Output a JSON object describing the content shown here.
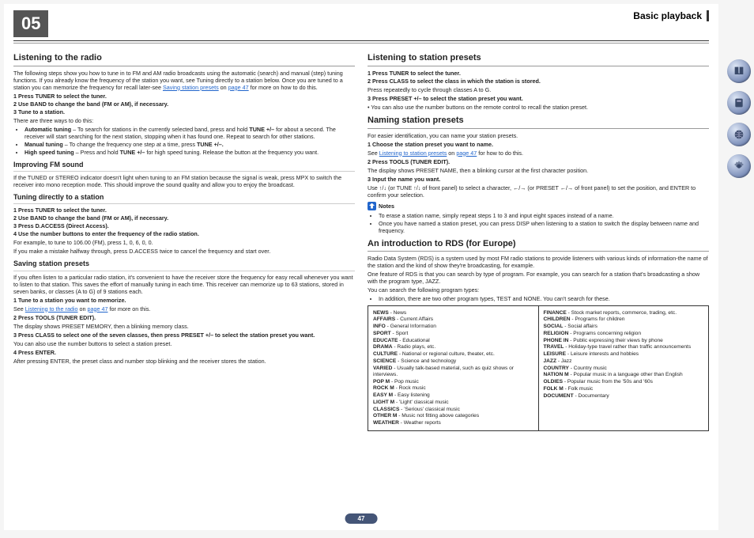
{
  "chapter": "05",
  "section": "Basic playback",
  "page_number": "47",
  "left": {
    "h1": "Listening to the radio",
    "intro": "The following steps show you how to tune in to FM and AM radio broadcasts using the automatic (search) and manual (step) tuning functions. If you already know the frequency of the station you want, see Tuning directly to a station below. Once you are tuned to a station you can memorize the frequency for recall later-see ",
    "intro_link1": "Saving station presets",
    "intro_mid": " on ",
    "intro_link2": "page 47",
    "intro_end": " for more on how to do this.",
    "s1": "1   Press TUNER to select the tuner.",
    "s2": "2   Use BAND to change the band (FM or AM), if necessary.",
    "s3": "3   Tune to a station.",
    "s3a": "There are three ways to do this:",
    "b1a": "Automatic tuning",
    "b1b": " – To search for stations in the currently selected band, press and hold ",
    "b1c": "TUNE +/–",
    "b1d": " for about a second. The receiver will start searching for the next station, stopping when it has found one. Repeat to search for other stations.",
    "b2a": "Manual tuning",
    "b2b": " – To change the frequency one step at a time, press ",
    "b2c": "TUNE +/–.",
    "b3a": "High speed tuning",
    "b3b": " – Press and hold ",
    "b3c": "TUNE +/–",
    "b3d": " for high speed tuning. Release the button at the frequency you want.",
    "h2a": "Improving FM sound",
    "fm": "If the TUNED or STEREO indicator doesn't light when tuning to an FM station because the signal is weak, press MPX to switch the receiver into mono reception mode. This should improve the sound quality and allow you to enjoy the broadcast.",
    "h2b": "Tuning directly to a station",
    "td1": "1   Press TUNER to select the tuner.",
    "td2": "2   Use BAND to change the band (FM or AM), if necessary.",
    "td3": "3   Press D.ACCESS (Direct Access).",
    "td4": "4   Use the number buttons to enter the frequency of the radio station.",
    "td_ex": "For example, to tune to 106.00 (FM), press 1, 0, 6, 0, 0.",
    "td_err": "If you make a mistake halfway through, press D.ACCESS twice to cancel the frequency and start over.",
    "h2c": "Saving station presets",
    "sp_intro": "If you often listen to a particular radio station, it's convenient to have the receiver store the frequency for easy recall whenever you want to listen to that station. This saves the effort of manually tuning in each time. This receiver can memorize up to 63 stations, stored in seven banks, or classes (A to G) of 9 stations each.",
    "sp1": "1   Tune to a station you want to memorize.",
    "sp1a": "See ",
    "sp1l": "Listening to the radio",
    "sp1m": " on ",
    "sp1l2": "page 47",
    "sp1e": " for more on this.",
    "sp2": "2   Press TOOLS (TUNER EDIT).",
    "sp2a": "The display shows PRESET MEMORY, then a blinking memory class.",
    "sp3": "3   Press CLASS to select one of the seven classes, then press PRESET +/– to select the station preset you want.",
    "sp3a": "You can also use the number buttons to select a station preset.",
    "sp4": "4   Press ENTER.",
    "sp4a": "After pressing ENTER, the preset class and number stop blinking and the receiver stores the station."
  },
  "right": {
    "h1": "Listening to station presets",
    "lp1": "1   Press TUNER to select the tuner.",
    "lp2": "2   Press CLASS to select the class in which the station is stored.",
    "lp2a": "Press repeatedly to cycle through classes A to G.",
    "lp3": "3   Press PRESET +/– to select the station preset you want.",
    "lp3a": "•  You can also use the number buttons on the remote control to recall the station preset.",
    "h2a": "Naming station presets",
    "np_intro": "For easier identification, you can name your station presets.",
    "np1": "1   Choose the station preset you want to name.",
    "np1a": "See ",
    "np1l": "Listening to station presets",
    "np1m": " on ",
    "np1l2": "page 47",
    "np1e": " for how to do this.",
    "np2": "2   Press TOOLS (TUNER EDIT).",
    "np2a": "The display shows PRESET NAME, then a blinking cursor at the first character position.",
    "np3": "3   Input the name you want.",
    "np3a": "Use ↑/↓ (or TUNE ↑/↓ of front panel) to select a character, ←/→ (or PRESET ←/→ of front panel) to set the position, and ENTER to confirm your selection.",
    "notes_label": "Notes",
    "note1": "To erase a station name, simply repeat steps 1 to 3 and input eight spaces instead of a name.",
    "note2": "Once you have named a station preset, you can press DISP when listening to a station to switch the display between name and frequency.",
    "h2b": "An introduction to RDS (for Europe)",
    "rds_intro": "Radio Data System (RDS) is a system used by most FM radio stations to provide listeners with various kinds of information-the name of the station and the kind of show they're broadcasting, for example.",
    "rds_intro2": "One feature of RDS is that you can search by type of program. For example, you can search for a station that's broadcasting a show with the program type, JAZZ.",
    "rds_intro3": "You can search the following program types:",
    "rds_intro4": "In addition, there are two other program types, TEST and NONE. You can't search for these."
  },
  "rds_left": [
    "NEWS - News",
    "AFFAIRS - Current Affairs",
    "INFO - General Information",
    "SPORT - Sport",
    "EDUCATE - Educational",
    "DRAMA - Radio plays, etc.",
    "CULTURE - National or regional culture, theater, etc.",
    "SCIENCE - Science and technology",
    "VARIED - Usually talk-based material, such as quiz shows or interviews.",
    "POP M - Pop music",
    "ROCK M - Rock music",
    "EASY M - Easy listening",
    "LIGHT M - 'Light' classical music",
    "CLASSICS - 'Serious' classical music",
    "OTHER M - Music not fitting above categories",
    "WEATHER - Weather reports"
  ],
  "rds_right": [
    "FINANCE - Stock market reports, commerce, trading, etc.",
    "CHILDREN - Programs for children",
    "SOCIAL - Social affairs",
    "RELIGION - Programs concerning religion",
    "PHONE IN - Public expressing their views by phone",
    "TRAVEL - Holiday-type travel rather than traffic announcements",
    "LEISURE - Leisure interests and hobbies",
    "JAZZ - Jazz",
    "COUNTRY - Country music",
    "NATION M - Popular music in a language other than English",
    "OLDIES - Popular music from the '50s and '60s",
    "FOLK M - Folk music",
    "DOCUMENT - Documentary"
  ]
}
